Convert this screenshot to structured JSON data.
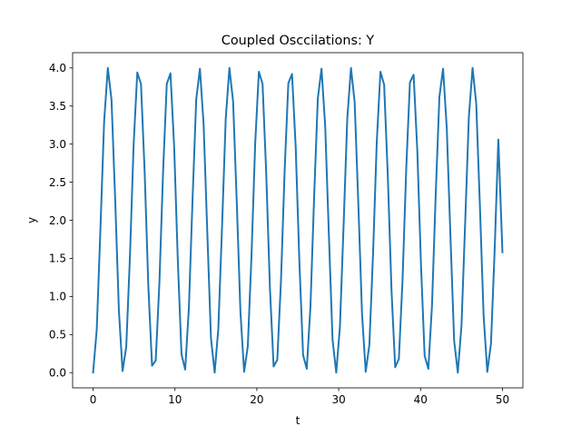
{
  "chart_data": {
    "type": "line",
    "title": "Coupled Osccilations: Y",
    "xlabel": "t",
    "ylabel": "y",
    "xlim": [
      -2.5,
      52.5
    ],
    "ylim": [
      -0.2,
      4.2
    ],
    "xticks": [
      0,
      10,
      20,
      30,
      40,
      50
    ],
    "xtick_labels": [
      "0",
      "10",
      "20",
      "30",
      "40",
      "50"
    ],
    "yticks": [
      0.0,
      0.5,
      1.0,
      1.5,
      2.0,
      2.5,
      3.0,
      3.5,
      4.0
    ],
    "ytick_labels": [
      "0.0",
      "0.5",
      "1.0",
      "1.5",
      "2.0",
      "2.5",
      "3.0",
      "3.5",
      "4.0"
    ],
    "grid": false,
    "series": [
      {
        "color": "#1f77b4",
        "x": [
          0,
          0.45,
          0.9,
          1.35,
          1.8,
          2.25,
          2.7,
          3.15,
          3.6,
          4.05,
          4.5,
          4.95,
          5.4,
          5.85,
          6.3,
          6.75,
          7.2,
          7.65,
          8.1,
          8.55,
          9.0,
          9.45,
          9.9,
          10.35,
          10.8,
          11.25,
          11.7,
          12.15,
          12.6,
          13.05,
          13.5,
          13.95,
          14.4,
          14.85,
          15.3,
          15.75,
          16.2,
          16.65,
          17.1,
          17.55,
          18.0,
          18.45,
          18.9,
          19.35,
          19.8,
          20.25,
          20.7,
          21.15,
          21.6,
          22.05,
          22.5,
          22.95,
          23.4,
          23.85,
          24.3,
          24.75,
          25.2,
          25.65,
          26.1,
          26.55,
          27.0,
          27.45,
          27.9,
          28.35,
          28.8,
          29.25,
          29.7,
          30.15,
          30.6,
          31.05,
          31.5,
          31.95,
          32.4,
          32.85,
          33.3,
          33.75,
          34.2,
          34.65,
          35.1,
          35.55,
          36.0,
          36.45,
          36.9,
          37.35,
          37.8,
          38.25,
          38.7,
          39.15,
          39.6,
          40.05,
          40.5,
          40.95,
          41.4,
          41.85,
          42.3,
          42.75,
          43.2,
          43.65,
          44.1,
          44.55,
          45.0,
          45.45,
          45.9,
          46.35,
          46.8,
          47.25,
          47.7,
          48.15,
          48.6,
          49.05,
          49.5,
          50.0
        ],
        "y": [
          0.0,
          0.57,
          1.9,
          3.3,
          4.0,
          3.58,
          2.27,
          0.82,
          0.02,
          0.34,
          1.52,
          2.99,
          3.94,
          3.79,
          2.63,
          1.13,
          0.09,
          0.16,
          1.18,
          2.64,
          3.79,
          3.93,
          2.97,
          1.47,
          0.24,
          0.04,
          0.85,
          2.28,
          3.59,
          3.99,
          3.26,
          1.84,
          0.45,
          0.0,
          0.58,
          1.91,
          3.33,
          4.0,
          3.56,
          2.24,
          0.79,
          0.01,
          0.35,
          1.54,
          3.01,
          3.95,
          3.79,
          2.61,
          1.11,
          0.08,
          0.17,
          1.2,
          2.66,
          3.8,
          3.92,
          2.95,
          1.45,
          0.23,
          0.05,
          0.87,
          2.31,
          3.6,
          3.99,
          3.24,
          1.81,
          0.43,
          0.0,
          0.6,
          1.94,
          3.34,
          4.0,
          3.55,
          2.21,
          0.77,
          0.01,
          0.37,
          1.57,
          3.03,
          3.95,
          3.78,
          2.58,
          1.08,
          0.07,
          0.18,
          1.22,
          2.68,
          3.81,
          3.91,
          2.92,
          1.42,
          0.22,
          0.05,
          0.89,
          2.34,
          3.62,
          3.99,
          3.21,
          1.79,
          0.42,
          0.0,
          0.62,
          1.97,
          3.36,
          4.0,
          3.53,
          2.18,
          0.75,
          0.01,
          0.38,
          1.61,
          3.06,
          1.58
        ]
      }
    ]
  }
}
